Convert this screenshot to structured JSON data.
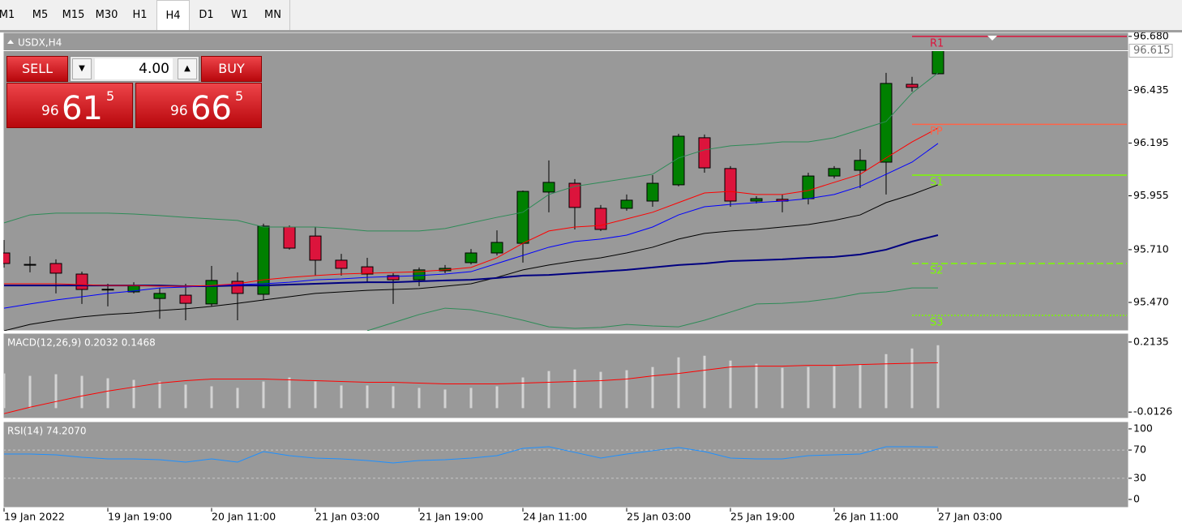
{
  "toolbar": {
    "timeframes": [
      "M1",
      "M5",
      "M15",
      "M30",
      "H1",
      "H4",
      "D1",
      "W1",
      "MN"
    ],
    "active": "H4"
  },
  "trade_panel": {
    "sell_label": "SELL",
    "buy_label": "BUY",
    "lot": "4.00",
    "sell_price": {
      "big": "96",
      "main": "61",
      "small": "5"
    },
    "buy_price": {
      "big": "96",
      "main": "66",
      "small": "5"
    }
  },
  "chart_data": [
    {
      "type": "candlestick",
      "title": "USDX,H4",
      "categories": [
        "19 Jan 2022",
        null,
        null,
        null,
        "19 Jan 19:00",
        null,
        null,
        null,
        "20 Jan 11:00",
        null,
        null,
        null,
        "21 Jan 03:00",
        null,
        null,
        null,
        "21 Jan 19:00",
        null,
        null,
        null,
        "24 Jan 11:00",
        null,
        null,
        null,
        "25 Jan 03:00",
        null,
        null,
        null,
        "25 Jan 19:00",
        null,
        null,
        null,
        "26 Jan 11:00",
        null,
        null,
        null,
        "27 Jan 03:00"
      ],
      "open": [
        95.695,
        95.643,
        95.647,
        95.599,
        95.53,
        95.518,
        95.488,
        95.503,
        95.463,
        95.566,
        95.507,
        95.813,
        95.772,
        95.662,
        95.632,
        95.592,
        95.573,
        95.614,
        95.651,
        95.695,
        95.739,
        95.972,
        96.012,
        95.898,
        95.898,
        95.931,
        96.005,
        96.219,
        96.079,
        95.931,
        95.939,
        95.942,
        96.045,
        96.071,
        96.108,
        96.462,
        96.51
      ],
      "high": [
        95.754,
        95.68,
        95.666,
        95.61,
        95.555,
        95.562,
        95.536,
        95.555,
        95.636,
        95.607,
        95.828,
        95.82,
        95.813,
        95.691,
        95.673,
        95.603,
        95.629,
        95.64,
        95.713,
        95.798,
        95.979,
        96.116,
        96.031,
        95.913,
        95.961,
        96.049,
        96.237,
        96.234,
        96.09,
        95.953,
        95.961,
        96.06,
        96.09,
        96.167,
        96.514,
        96.496,
        96.617
      ],
      "low": [
        95.628,
        95.607,
        95.511,
        95.463,
        95.452,
        95.511,
        95.396,
        95.389,
        95.452,
        95.389,
        95.481,
        95.71,
        95.592,
        95.592,
        95.562,
        95.463,
        95.544,
        95.603,
        95.643,
        95.684,
        95.651,
        95.88,
        95.802,
        95.795,
        95.887,
        95.905,
        95.998,
        96.06,
        95.905,
        95.92,
        95.88,
        95.916,
        96.034,
        95.99,
        95.961,
        96.429,
        96.507
      ],
      "close": [
        95.647,
        95.643,
        95.603,
        95.529,
        95.529,
        95.547,
        95.511,
        95.466,
        95.57,
        95.511,
        95.817,
        95.717,
        95.662,
        95.625,
        95.599,
        95.573,
        95.618,
        95.625,
        95.695,
        95.743,
        95.975,
        96.016,
        95.902,
        95.802,
        95.935,
        96.012,
        96.226,
        96.082,
        95.931,
        95.942,
        95.931,
        96.045,
        96.079,
        96.116,
        96.466,
        96.448,
        96.615
      ],
      "up_color": "#008000",
      "down_color": "#dc143c",
      "lines": [
        {
          "color": "#2e8b57",
          "values": [
            95.832,
            95.868,
            95.876,
            95.876,
            95.876,
            95.872,
            95.865,
            95.857,
            95.85,
            95.843,
            95.813,
            95.813,
            95.813,
            95.806,
            95.795,
            95.795,
            95.795,
            95.806,
            95.832,
            95.857,
            95.88,
            95.961,
            95.998,
            96.016,
            96.034,
            96.053,
            96.127,
            96.164,
            96.182,
            96.189,
            96.2,
            96.2,
            96.219,
            96.256,
            96.293,
            96.422,
            96.514
          ]
        },
        {
          "color": "#2e8b57",
          "values": [
            null,
            null,
            null,
            null,
            null,
            null,
            null,
            null,
            null,
            null,
            null,
            null,
            null,
            null,
            95.341,
            95.378,
            95.415,
            95.444,
            95.437,
            95.415,
            95.389,
            95.359,
            95.352,
            95.356,
            95.37,
            95.363,
            95.359,
            95.389,
            95.426,
            95.463,
            95.466,
            95.474,
            95.489,
            95.511,
            95.518,
            95.536,
            95.536
          ]
        },
        {
          "color": "#000000",
          "values": [
            95.341,
            95.37,
            95.389,
            95.404,
            95.415,
            95.422,
            95.433,
            95.441,
            95.452,
            95.466,
            95.481,
            95.496,
            95.511,
            95.518,
            95.525,
            95.529,
            95.533,
            95.544,
            95.555,
            95.584,
            95.618,
            95.64,
            95.658,
            95.673,
            95.695,
            95.721,
            95.758,
            95.784,
            95.795,
            95.802,
            95.813,
            95.824,
            95.843,
            95.868,
            95.924,
            95.961,
            96.005
          ]
        },
        {
          "color": "#000080",
          "values": [
            95.547,
            95.547,
            95.547,
            95.547,
            95.547,
            95.547,
            95.547,
            95.544,
            95.544,
            95.547,
            95.547,
            95.551,
            95.555,
            95.559,
            95.562,
            95.562,
            95.566,
            95.57,
            95.573,
            95.581,
            95.592,
            95.595,
            95.603,
            95.61,
            95.618,
            95.629,
            95.64,
            95.647,
            95.658,
            95.662,
            95.666,
            95.673,
            95.677,
            95.688,
            95.71,
            95.747,
            95.776
          ]
        },
        {
          "color": "#0000ff",
          "values": [
            95.444,
            95.463,
            95.481,
            95.496,
            95.511,
            95.522,
            95.536,
            95.54,
            95.547,
            95.551,
            95.555,
            95.562,
            95.573,
            95.577,
            95.584,
            95.588,
            95.592,
            95.599,
            95.61,
            95.647,
            95.684,
            95.721,
            95.747,
            95.758,
            95.776,
            95.813,
            95.868,
            95.905,
            95.916,
            95.924,
            95.931,
            95.942,
            95.961,
            95.998,
            96.053,
            96.108,
            96.193
          ]
        },
        {
          "color": "#ff0000",
          "values": [
            95.555,
            95.555,
            95.555,
            95.551,
            95.547,
            95.547,
            95.544,
            95.544,
            95.547,
            95.555,
            95.573,
            95.584,
            95.592,
            95.599,
            95.603,
            95.606,
            95.61,
            95.618,
            95.629,
            95.673,
            95.739,
            95.795,
            95.813,
            95.82,
            95.85,
            95.88,
            95.924,
            95.968,
            95.975,
            95.961,
            95.961,
            95.979,
            96.016,
            96.053,
            96.127,
            96.2,
            96.263
          ]
        }
      ],
      "current_price": 96.615,
      "pivots": [
        {
          "label": "R1",
          "value": 96.68,
          "color": "#dc143c",
          "style": "solid"
        },
        {
          "label": "PP",
          "value": 96.28,
          "color": "#ff6347",
          "style": "solid"
        },
        {
          "label": "S1",
          "value": 96.049,
          "color": "#7cfc00",
          "style": "solid"
        },
        {
          "label": "S2",
          "value": 95.647,
          "color": "#7cfc00",
          "style": "dashed"
        },
        {
          "label": "S3",
          "value": 95.411,
          "color": "#7cfc00",
          "style": "dotted"
        }
      ],
      "ylim": [
        95.341,
        96.698
      ],
      "yticks": [
        {
          "value": 96.68,
          "label": "96.680"
        },
        96.435,
        96.195,
        95.955,
        {
          "value": 95.71,
          "label": "95.710"
        },
        {
          "value": 95.47,
          "label": "95.470"
        }
      ]
    },
    {
      "type": "macd",
      "title": "MACD(12,26,9) 0.2032 0.1468",
      "values": [
        0.1121,
        0.1043,
        0.1095,
        0.1043,
        0.0965,
        0.0913,
        0.0861,
        0.0758,
        0.0706,
        0.0654,
        0.0861,
        0.0991,
        0.0861,
        0.0732,
        0.0732,
        0.0706,
        0.0654,
        0.0602,
        0.0654,
        0.0706,
        0.0991,
        0.1199,
        0.1251,
        0.1173,
        0.1225,
        0.1329,
        0.1641,
        0.1693,
        0.1537,
        0.1433,
        0.1303,
        0.1329,
        0.1355,
        0.1407,
        0.1745,
        0.1927,
        0.2032
      ],
      "color": "#d3d3d3",
      "signal": {
        "color": "#ff0000",
        "values": [
          -0.0178,
          0.003,
          0.0212,
          0.0394,
          0.055,
          0.068,
          0.081,
          0.0887,
          0.0939,
          0.0939,
          0.0939,
          0.0913,
          0.0887,
          0.0861,
          0.0835,
          0.0835,
          0.081,
          0.0784,
          0.0784,
          0.0784,
          0.081,
          0.0835,
          0.0861,
          0.0887,
          0.0939,
          0.1043,
          0.1121,
          0.1225,
          0.1329,
          0.1355,
          0.1355,
          0.1381,
          0.1381,
          0.1407,
          0.1433,
          0.145,
          0.1468
        ]
      },
      "ylim": [
        -0.033,
        0.242
      ],
      "yticks": [
        0.2135,
        -0.0126
      ]
    },
    {
      "type": "line",
      "title": "RSI(14) 74.2070",
      "values": [
        64.4,
        64.4,
        63.2,
        59.8,
        57.5,
        57.5,
        56.3,
        52.9,
        57.5,
        52.9,
        67.8,
        62.1,
        58.6,
        57.5,
        55.2,
        51.7,
        55.2,
        56.3,
        58.6,
        62.1,
        72.4,
        74.7,
        66.7,
        58.6,
        64.4,
        69.0,
        73.6,
        67.8,
        58.6,
        57.5,
        57.5,
        62.1,
        63.2,
        64.4,
        74.7,
        74.7,
        74.207
      ],
      "color": "#1e90ff",
      "levels": [
        70,
        30
      ],
      "ylim": [
        -11.5,
        110.3
      ],
      "yticks": [
        100,
        70,
        30,
        0
      ]
    }
  ]
}
